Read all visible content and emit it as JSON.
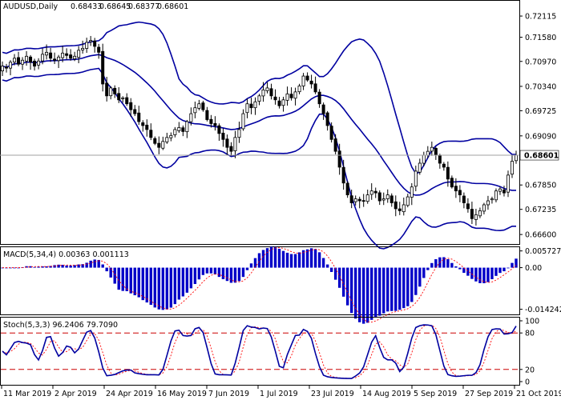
{
  "window": {
    "symbol": "AUDUSD",
    "timeframe": "Daily",
    "open": "0.68433",
    "high": "0.68645",
    "low": "0.68377",
    "close": "0.68601"
  },
  "colors": {
    "background": "#ffffff",
    "candle": "#000000",
    "bands": "#0000a0",
    "macd_hist": "#0000c8",
    "signal": "#ff0000",
    "stoch_main": "#0000a0",
    "stoch_signal": "#ff0000",
    "levels": "#cc0000"
  },
  "chart_data": [
    {
      "type": "candlestick",
      "panel": "price",
      "title": "AUDUSD,Daily",
      "indicator": "Bollinger Bands",
      "ylim": [
        0.6636,
        0.725
      ],
      "y_ticks": [
        "0.72115",
        "0.71580",
        "0.70970",
        "0.70340",
        "0.69725",
        "0.69090",
        "0.68601",
        "0.67850",
        "0.67235",
        "0.66600"
      ],
      "last_price": "0.68601",
      "x_labels": [
        "11 Mar 2019",
        "2 Apr 2019",
        "24 Apr 2019",
        "16 May 2019",
        "7 Jun 2019",
        "1 Jul 2019",
        "23 Jul 2019",
        "14 Aug 2019",
        "5 Sep 2019",
        "27 Sep 2019",
        "21 Oct 2019"
      ],
      "closes": [
        0.7085,
        0.708,
        0.7095,
        0.7105,
        0.709,
        0.71,
        0.711,
        0.7095,
        0.7085,
        0.7098,
        0.7115,
        0.712,
        0.7105,
        0.71,
        0.7108,
        0.7118,
        0.7112,
        0.7105,
        0.711,
        0.7125,
        0.713,
        0.7145,
        0.715,
        0.7135,
        0.712,
        0.704,
        0.701,
        0.703,
        0.7015,
        0.7,
        0.7005,
        0.699,
        0.6975,
        0.6965,
        0.6945,
        0.6935,
        0.6925,
        0.6905,
        0.689,
        0.688,
        0.6895,
        0.6905,
        0.691,
        0.6925,
        0.693,
        0.692,
        0.6945,
        0.6965,
        0.698,
        0.699,
        0.6975,
        0.695,
        0.694,
        0.6935,
        0.6915,
        0.69,
        0.688,
        0.687,
        0.6905,
        0.6925,
        0.6965,
        0.699,
        0.698,
        0.6995,
        0.701,
        0.7025,
        0.703,
        0.701,
        0.7,
        0.6985,
        0.7,
        0.7015,
        0.7005,
        0.702,
        0.7035,
        0.706,
        0.705,
        0.704,
        0.702,
        0.699,
        0.6965,
        0.6935,
        0.69,
        0.687,
        0.683,
        0.679,
        0.676,
        0.674,
        0.675,
        0.6745,
        0.6745,
        0.676,
        0.677,
        0.6765,
        0.6745,
        0.675,
        0.676,
        0.674,
        0.6725,
        0.672,
        0.6735,
        0.6755,
        0.678,
        0.682,
        0.684,
        0.686,
        0.687,
        0.688,
        0.686,
        0.684,
        0.683,
        0.68,
        0.678,
        0.677,
        0.676,
        0.674,
        0.6725,
        0.67,
        0.671,
        0.672,
        0.6735,
        0.6745,
        0.675,
        0.677,
        0.6775,
        0.6765,
        0.681,
        0.6845,
        0.686
      ]
    },
    {
      "type": "bar",
      "panel": "macd",
      "title": "MACD(5,34,4)",
      "values_text": [
        "0.00363",
        "0.001113"
      ],
      "y_ticks": [
        "0.005727",
        "0.00",
        "-0.014242"
      ],
      "ylim": [
        -0.016,
        0.007
      ]
    },
    {
      "type": "line",
      "panel": "stochastic",
      "title": "Stoch(5,3,3)",
      "values_text": [
        "96.2406",
        "79.7090"
      ],
      "y_ticks": [
        "100",
        "80",
        "20",
        "0"
      ],
      "levels": [
        80,
        20
      ],
      "ylim": [
        0,
        100
      ]
    }
  ]
}
